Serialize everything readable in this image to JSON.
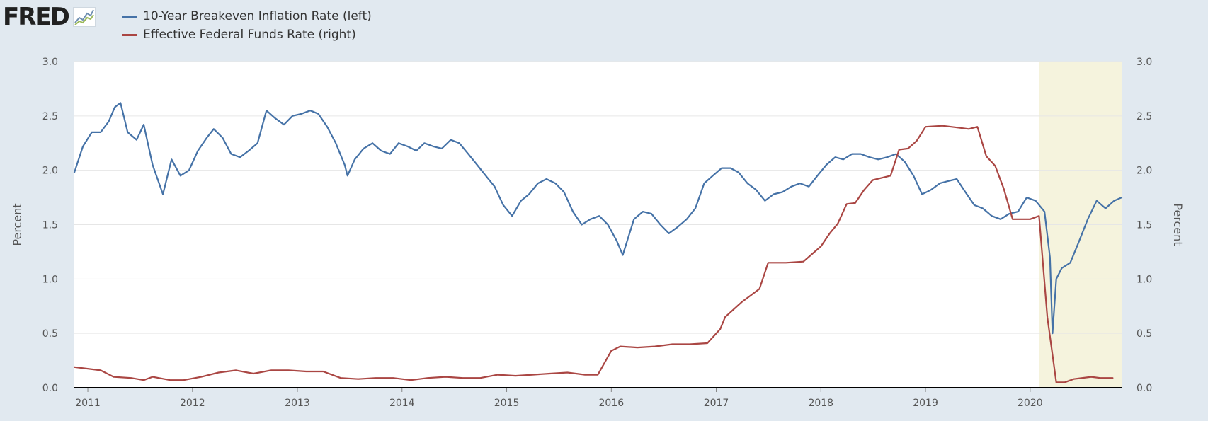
{
  "header": {
    "logo_text": "FRED",
    "logo_icon": "chart-line-icon"
  },
  "legend": [
    {
      "label": "10-Year Breakeven Inflation Rate (left)",
      "color": "#4572a7"
    },
    {
      "label": "Effective Federal Funds Rate (right)",
      "color": "#aa4643"
    }
  ],
  "colors": {
    "plot_background": "#ffffff",
    "page_background": "#e1e9f0",
    "recession_band": "#f5f3dd",
    "gridline": "#e6e6e6",
    "baseline": "#000000"
  },
  "chart_data": {
    "type": "line",
    "title": "",
    "x_range": [
      "2010-11-15",
      "2020-11-15"
    ],
    "x_ticks": [
      "2011",
      "2012",
      "2013",
      "2014",
      "2015",
      "2016",
      "2017",
      "2018",
      "2019",
      "2020"
    ],
    "left_axis": {
      "label": "Percent",
      "range": [
        0,
        3.0
      ],
      "ticks": [
        "0.0",
        "0.5",
        "1.0",
        "1.5",
        "2.0",
        "2.5",
        "3.0"
      ]
    },
    "right_axis": {
      "label": "Percent",
      "range": [
        0,
        3.0
      ],
      "ticks": [
        "0.0",
        "0.5",
        "1.0",
        "1.5",
        "2.0",
        "2.5",
        "3.0"
      ]
    },
    "grid": true,
    "legend_position": "top-left",
    "shaded_regions": [
      {
        "start": "2020-02-01",
        "end": "2020-11-15",
        "label": "recession"
      }
    ],
    "series": [
      {
        "name": "10-Year Breakeven Inflation Rate (left)",
        "axis": "left",
        "color": "#4572a7",
        "points": [
          [
            "2010-11-15",
            1.98
          ],
          [
            "2010-12-15",
            2.22
          ],
          [
            "2011-01-15",
            2.35
          ],
          [
            "2011-02-15",
            2.35
          ],
          [
            "2011-03-15",
            2.45
          ],
          [
            "2011-04-05",
            2.58
          ],
          [
            "2011-04-25",
            2.62
          ],
          [
            "2011-05-20",
            2.35
          ],
          [
            "2011-06-20",
            2.28
          ],
          [
            "2011-07-15",
            2.42
          ],
          [
            "2011-08-15",
            2.05
          ],
          [
            "2011-09-20",
            1.78
          ],
          [
            "2011-10-20",
            2.1
          ],
          [
            "2011-11-20",
            1.95
          ],
          [
            "2011-12-20",
            2.0
          ],
          [
            "2012-01-20",
            2.18
          ],
          [
            "2012-02-20",
            2.3
          ],
          [
            "2012-03-15",
            2.38
          ],
          [
            "2012-04-15",
            2.3
          ],
          [
            "2012-05-15",
            2.15
          ],
          [
            "2012-06-15",
            2.12
          ],
          [
            "2012-07-15",
            2.18
          ],
          [
            "2012-08-15",
            2.25
          ],
          [
            "2012-09-15",
            2.55
          ],
          [
            "2012-10-15",
            2.48
          ],
          [
            "2012-11-15",
            2.42
          ],
          [
            "2012-12-15",
            2.5
          ],
          [
            "2013-01-15",
            2.52
          ],
          [
            "2013-02-15",
            2.55
          ],
          [
            "2013-03-15",
            2.52
          ],
          [
            "2013-04-15",
            2.4
          ],
          [
            "2013-05-15",
            2.25
          ],
          [
            "2013-06-15",
            2.05
          ],
          [
            "2013-06-25",
            1.95
          ],
          [
            "2013-07-20",
            2.1
          ],
          [
            "2013-08-20",
            2.2
          ],
          [
            "2013-09-20",
            2.25
          ],
          [
            "2013-10-20",
            2.18
          ],
          [
            "2013-11-20",
            2.15
          ],
          [
            "2013-12-20",
            2.25
          ],
          [
            "2014-01-20",
            2.22
          ],
          [
            "2014-02-20",
            2.18
          ],
          [
            "2014-03-20",
            2.25
          ],
          [
            "2014-04-20",
            2.22
          ],
          [
            "2014-05-20",
            2.2
          ],
          [
            "2014-06-20",
            2.28
          ],
          [
            "2014-07-20",
            2.25
          ],
          [
            "2014-08-20",
            2.15
          ],
          [
            "2014-09-20",
            2.05
          ],
          [
            "2014-10-20",
            1.95
          ],
          [
            "2014-11-20",
            1.85
          ],
          [
            "2014-12-20",
            1.68
          ],
          [
            "2015-01-20",
            1.58
          ],
          [
            "2015-02-20",
            1.72
          ],
          [
            "2015-03-20",
            1.78
          ],
          [
            "2015-04-20",
            1.88
          ],
          [
            "2015-05-20",
            1.92
          ],
          [
            "2015-06-20",
            1.88
          ],
          [
            "2015-07-20",
            1.8
          ],
          [
            "2015-08-20",
            1.62
          ],
          [
            "2015-09-20",
            1.5
          ],
          [
            "2015-10-20",
            1.55
          ],
          [
            "2015-11-20",
            1.58
          ],
          [
            "2015-12-20",
            1.5
          ],
          [
            "2016-01-20",
            1.35
          ],
          [
            "2016-02-10",
            1.22
          ],
          [
            "2016-03-20",
            1.55
          ],
          [
            "2016-04-20",
            1.62
          ],
          [
            "2016-05-20",
            1.6
          ],
          [
            "2016-06-20",
            1.5
          ],
          [
            "2016-07-20",
            1.42
          ],
          [
            "2016-08-20",
            1.48
          ],
          [
            "2016-09-20",
            1.55
          ],
          [
            "2016-10-20",
            1.65
          ],
          [
            "2016-11-20",
            1.88
          ],
          [
            "2016-12-20",
            1.95
          ],
          [
            "2017-01-20",
            2.02
          ],
          [
            "2017-02-20",
            2.02
          ],
          [
            "2017-03-20",
            1.98
          ],
          [
            "2017-04-20",
            1.88
          ],
          [
            "2017-05-20",
            1.82
          ],
          [
            "2017-06-20",
            1.72
          ],
          [
            "2017-07-20",
            1.78
          ],
          [
            "2017-08-20",
            1.8
          ],
          [
            "2017-09-20",
            1.85
          ],
          [
            "2017-10-20",
            1.88
          ],
          [
            "2017-11-20",
            1.85
          ],
          [
            "2017-12-20",
            1.95
          ],
          [
            "2018-01-20",
            2.05
          ],
          [
            "2018-02-20",
            2.12
          ],
          [
            "2018-03-20",
            2.1
          ],
          [
            "2018-04-20",
            2.15
          ],
          [
            "2018-05-20",
            2.15
          ],
          [
            "2018-06-20",
            2.12
          ],
          [
            "2018-07-20",
            2.1
          ],
          [
            "2018-08-20",
            2.12
          ],
          [
            "2018-09-20",
            2.15
          ],
          [
            "2018-10-20",
            2.08
          ],
          [
            "2018-11-20",
            1.95
          ],
          [
            "2018-12-20",
            1.78
          ],
          [
            "2019-01-20",
            1.82
          ],
          [
            "2019-02-20",
            1.88
          ],
          [
            "2019-03-20",
            1.9
          ],
          [
            "2019-04-20",
            1.92
          ],
          [
            "2019-05-20",
            1.8
          ],
          [
            "2019-06-20",
            1.68
          ],
          [
            "2019-07-20",
            1.65
          ],
          [
            "2019-08-20",
            1.58
          ],
          [
            "2019-09-20",
            1.55
          ],
          [
            "2019-10-20",
            1.6
          ],
          [
            "2019-11-20",
            1.62
          ],
          [
            "2019-12-20",
            1.75
          ],
          [
            "2020-01-20",
            1.72
          ],
          [
            "2020-02-20",
            1.62
          ],
          [
            "2020-03-10",
            1.2
          ],
          [
            "2020-03-19",
            0.5
          ],
          [
            "2020-04-01",
            1.0
          ],
          [
            "2020-04-20",
            1.1
          ],
          [
            "2020-05-20",
            1.15
          ],
          [
            "2020-06-20",
            1.35
          ],
          [
            "2020-07-20",
            1.55
          ],
          [
            "2020-08-20",
            1.72
          ],
          [
            "2020-09-20",
            1.65
          ],
          [
            "2020-10-20",
            1.72
          ],
          [
            "2020-11-15",
            1.75
          ]
        ]
      },
      {
        "name": "Effective Federal Funds Rate (right)",
        "axis": "right",
        "color": "#aa4643",
        "points": [
          [
            "2010-11-15",
            0.19
          ],
          [
            "2011-02-15",
            0.16
          ],
          [
            "2011-04-01",
            0.1
          ],
          [
            "2011-06-01",
            0.09
          ],
          [
            "2011-07-15",
            0.07
          ],
          [
            "2011-08-15",
            0.1
          ],
          [
            "2011-10-15",
            0.07
          ],
          [
            "2011-12-01",
            0.07
          ],
          [
            "2012-02-01",
            0.1
          ],
          [
            "2012-04-01",
            0.14
          ],
          [
            "2012-06-01",
            0.16
          ],
          [
            "2012-08-01",
            0.13
          ],
          [
            "2012-10-01",
            0.16
          ],
          [
            "2012-12-01",
            0.16
          ],
          [
            "2013-02-01",
            0.15
          ],
          [
            "2013-04-01",
            0.15
          ],
          [
            "2013-06-01",
            0.09
          ],
          [
            "2013-08-01",
            0.08
          ],
          [
            "2013-10-01",
            0.09
          ],
          [
            "2013-12-01",
            0.09
          ],
          [
            "2014-02-01",
            0.07
          ],
          [
            "2014-04-01",
            0.09
          ],
          [
            "2014-06-01",
            0.1
          ],
          [
            "2014-08-01",
            0.09
          ],
          [
            "2014-10-01",
            0.09
          ],
          [
            "2014-12-01",
            0.12
          ],
          [
            "2015-02-01",
            0.11
          ],
          [
            "2015-04-01",
            0.12
          ],
          [
            "2015-06-01",
            0.13
          ],
          [
            "2015-08-01",
            0.14
          ],
          [
            "2015-10-01",
            0.12
          ],
          [
            "2015-11-15",
            0.12
          ],
          [
            "2016-01-01",
            0.34
          ],
          [
            "2016-02-01",
            0.38
          ],
          [
            "2016-04-01",
            0.37
          ],
          [
            "2016-06-01",
            0.38
          ],
          [
            "2016-08-01",
            0.4
          ],
          [
            "2016-10-01",
            0.4
          ],
          [
            "2016-12-01",
            0.41
          ],
          [
            "2017-01-15",
            0.54
          ],
          [
            "2017-02-01",
            0.65
          ],
          [
            "2017-04-01",
            0.79
          ],
          [
            "2017-06-01",
            0.91
          ],
          [
            "2017-07-01",
            1.15
          ],
          [
            "2017-09-01",
            1.15
          ],
          [
            "2017-11-01",
            1.16
          ],
          [
            "2018-01-01",
            1.3
          ],
          [
            "2018-02-01",
            1.42
          ],
          [
            "2018-03-01",
            1.51
          ],
          [
            "2018-04-01",
            1.69
          ],
          [
            "2018-05-01",
            1.7
          ],
          [
            "2018-06-01",
            1.82
          ],
          [
            "2018-07-01",
            1.91
          ],
          [
            "2018-09-01",
            1.95
          ],
          [
            "2018-10-01",
            2.19
          ],
          [
            "2018-11-01",
            2.2
          ],
          [
            "2018-12-01",
            2.27
          ],
          [
            "2019-01-01",
            2.4
          ],
          [
            "2019-03-01",
            2.41
          ],
          [
            "2019-05-01",
            2.39
          ],
          [
            "2019-06-01",
            2.38
          ],
          [
            "2019-07-01",
            2.4
          ],
          [
            "2019-08-01",
            2.13
          ],
          [
            "2019-09-01",
            2.04
          ],
          [
            "2019-10-01",
            1.83
          ],
          [
            "2019-11-01",
            1.55
          ],
          [
            "2019-12-01",
            1.55
          ],
          [
            "2020-01-01",
            1.55
          ],
          [
            "2020-02-01",
            1.58
          ],
          [
            "2020-03-01",
            0.65
          ],
          [
            "2020-04-01",
            0.05
          ],
          [
            "2020-05-01",
            0.05
          ],
          [
            "2020-06-01",
            0.08
          ],
          [
            "2020-08-01",
            0.1
          ],
          [
            "2020-09-01",
            0.09
          ],
          [
            "2020-10-15",
            0.09
          ]
        ]
      }
    ]
  }
}
